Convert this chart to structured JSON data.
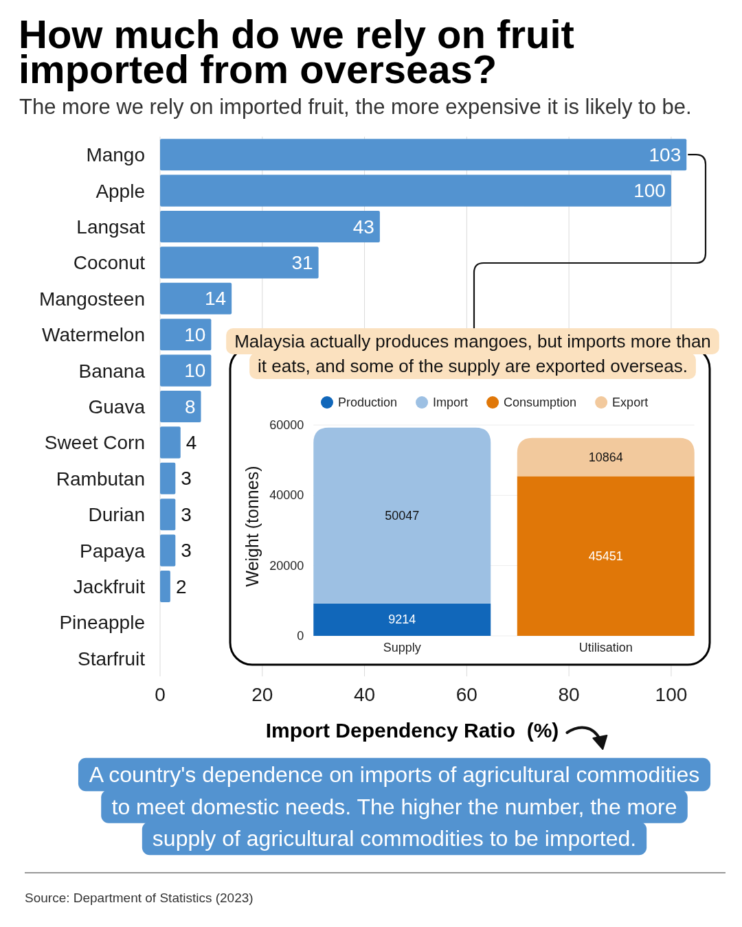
{
  "chart_data": [
    {
      "type": "bar",
      "orientation": "horizontal",
      "title": "How much do we rely on fruit imported from overseas?",
      "subtitle": "The more we rely on imported fruit, the more expensive it is likely to be.",
      "xlabel": "Import Dependency Ratio  (%)",
      "categories": [
        "Mango",
        "Apple",
        "Langsat",
        "Coconut",
        "Mangosteen",
        "Watermelon",
        "Banana",
        "Guava",
        "Sweet Corn",
        "Rambutan",
        "Durian",
        "Papaya",
        "Jackfruit",
        "Pineapple",
        "Starfruit"
      ],
      "values": [
        103,
        100,
        43,
        31,
        14,
        10,
        10,
        8,
        4,
        3,
        3,
        3,
        2,
        null,
        null
      ],
      "color": "#5393d0",
      "xlim": [
        0,
        107
      ],
      "xticks": [
        0,
        20,
        40,
        60,
        80,
        100
      ],
      "grid": "x",
      "data_labels": true,
      "annotations": [
        "A country's dependence on imports of agricultural commodities to meet domestic needs. The higher the number, the more supply of agricultural commodities to be imported.",
        "Source: Department of Statistics (2023)"
      ]
    },
    {
      "type": "bar",
      "stacked": true,
      "title": "Malaysia actually produces mangoes, but imports more than it eats, and some of the supply are exported overseas.",
      "ylabel": "Weight (tonnes)",
      "categories": [
        "Supply",
        "Utilisation"
      ],
      "series": [
        {
          "name": "Production",
          "color": "#1167ba",
          "values": [
            9214,
            null
          ]
        },
        {
          "name": "Import",
          "color": "#9dc0e3",
          "values": [
            50047,
            null
          ]
        },
        {
          "name": "Consumption",
          "color": "#e07708",
          "values": [
            null,
            45451
          ]
        },
        {
          "name": "Export",
          "color": "#f2c99d",
          "values": [
            null,
            10864
          ]
        }
      ],
      "ylim": [
        0,
        60000
      ],
      "yticks": [
        0,
        20000,
        40000,
        60000
      ],
      "grid": "y",
      "legend": "top",
      "data_labels": true
    }
  ]
}
